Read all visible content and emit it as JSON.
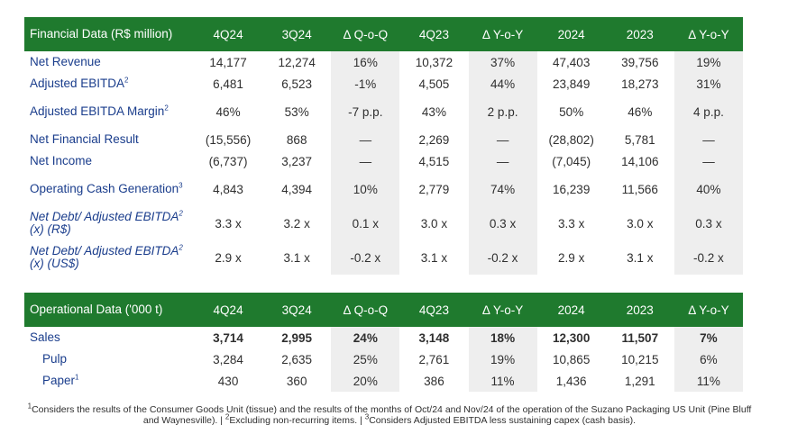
{
  "financial": {
    "title": "Financial Data (R$ million)",
    "columns": [
      "4Q24",
      "3Q24",
      "Δ Q-o-Q",
      "4Q23",
      "Δ Y-o-Y",
      "2024",
      "2023",
      "Δ Y-o-Y"
    ],
    "rows": [
      {
        "label": "Net Revenue",
        "sup": "",
        "values": [
          "14,177",
          "12,274",
          "16%",
          "10,372",
          "37%",
          "47,403",
          "39,756",
          "19%"
        ]
      },
      {
        "label": "Adjusted EBITDA",
        "sup": "2",
        "values": [
          "6,481",
          "6,523",
          "-1%",
          "4,505",
          "44%",
          "23,849",
          "18,273",
          "31%"
        ]
      },
      {
        "label": "Adjusted EBITDA Margin",
        "sup": "2",
        "values": [
          "46%",
          "53%",
          "-7 p.p.",
          "43%",
          "2 p.p.",
          "50%",
          "46%",
          "4 p.p."
        ]
      },
      {
        "label": "Net Financial Result",
        "sup": "",
        "values": [
          "(15,556)",
          "868",
          "—",
          "2,269",
          "—",
          "(28,802)",
          "5,781",
          "—"
        ]
      },
      {
        "label": "Net Income",
        "sup": "",
        "values": [
          "(6,737)",
          "3,237",
          "—",
          "4,515",
          "—",
          "(7,045)",
          "14,106",
          "—"
        ]
      },
      {
        "label": "Operating Cash Generation",
        "sup": "3",
        "values": [
          "4,843",
          "4,394",
          "10%",
          "2,779",
          "74%",
          "16,239",
          "11,566",
          "40%"
        ]
      },
      {
        "label_a": "Net Debt/ Adjusted EBITDA",
        "label_b": " (x) (R$)",
        "sup": "2",
        "values": [
          "3.3 x",
          "3.2 x",
          "0.1 x",
          "3.0 x",
          "0.3 x",
          "3.3 x",
          "3.0 x",
          "0.3 x"
        ]
      },
      {
        "label_a": "Net Debt/ Adjusted EBITDA",
        "label_b": " (x) (US$)",
        "sup": "2",
        "values": [
          "2.9 x",
          "3.1 x",
          "-0.2 x",
          "3.1 x",
          "-0.2 x",
          "2.9 x",
          "3.1 x",
          "-0.2 x"
        ]
      }
    ]
  },
  "operational": {
    "title": "Operational Data ('000 t)",
    "columns": [
      "4Q24",
      "3Q24",
      "Δ Q-o-Q",
      "4Q23",
      "Δ Y-o-Y",
      "2024",
      "2023",
      "Δ Y-o-Y"
    ],
    "rows": [
      {
        "label": "Sales",
        "sup": "",
        "values": [
          "3,714",
          "2,995",
          "24%",
          "3,148",
          "18%",
          "12,300",
          "11,507",
          "7%"
        ]
      },
      {
        "label": "Pulp",
        "sup": "",
        "values": [
          "3,284",
          "2,635",
          "25%",
          "2,761",
          "19%",
          "10,865",
          "10,215",
          "6%"
        ]
      },
      {
        "label": "Paper",
        "sup": "1",
        "values": [
          "430",
          "360",
          "20%",
          "386",
          "11%",
          "1,436",
          "1,291",
          "11%"
        ]
      }
    ]
  },
  "footnote": {
    "m1": "1",
    "t1": "Considers the results of the Consumer Goods Unit (tissue) and the results of the months of Oct/24 and Nov/24 of the operation of the Suzano Packaging US Unit (Pine Bluff and Waynesville). | ",
    "m2": "2",
    "t2": "Excluding non-recurring items. | ",
    "m3": "3",
    "t3": "Considers Adjusted EBITDA less sustaining capex (cash basis)."
  },
  "colors": {
    "header_green": "#1f7a2e",
    "label_blue": "#1a3d8c",
    "shade_gray": "#eeeeee"
  }
}
